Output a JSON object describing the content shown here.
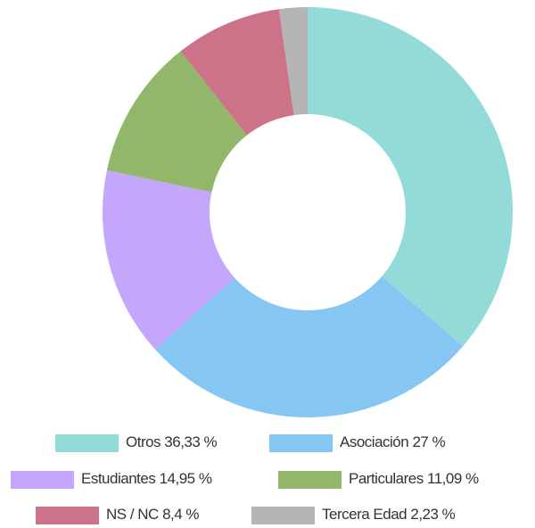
{
  "chart_data": {
    "type": "donut",
    "categories": [
      "Otros",
      "Asociación",
      "Estudiantes",
      "Particulares",
      "NS / NC",
      "Tercera Edad"
    ],
    "values": [
      36.33,
      27,
      14.95,
      11.09,
      8.4,
      2.23
    ],
    "value_labels": [
      "36,33 %",
      "27 %",
      "14,95 %",
      "11,09 %",
      "8,4 %",
      "2,23 %"
    ],
    "colors": [
      "#93dbd9",
      "#85c6f2",
      "#c4a7fb",
      "#93b76a",
      "#cc7289",
      "#b5b5b5"
    ],
    "legend": "bottom"
  }
}
